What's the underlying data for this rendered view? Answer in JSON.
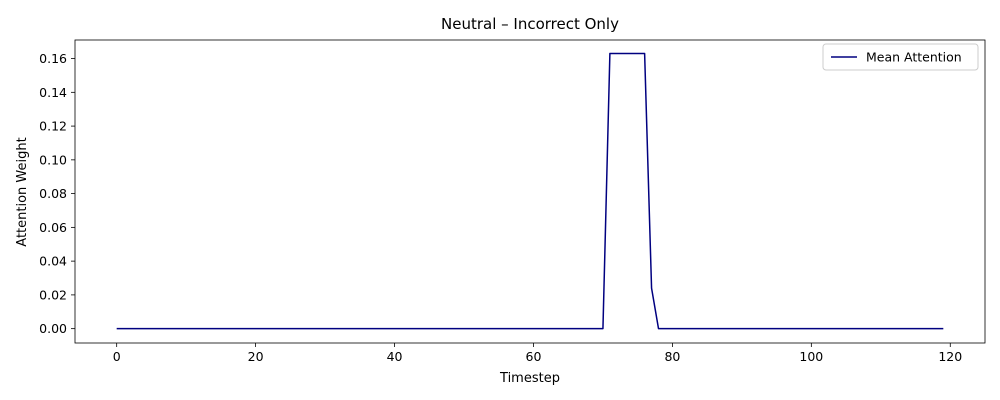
{
  "chart_data": {
    "type": "line",
    "title": "Neutral – Incorrect Only",
    "xlabel": "Timestep",
    "ylabel": "Attention Weight",
    "xlim": [
      -6,
      125
    ],
    "ylim": [
      -0.0085,
      0.171
    ],
    "xticks": [
      0,
      20,
      40,
      60,
      80,
      100,
      120
    ],
    "xtick_labels": [
      "0",
      "20",
      "40",
      "60",
      "80",
      "100",
      "120"
    ],
    "yticks": [
      0.0,
      0.02,
      0.04,
      0.06,
      0.08,
      0.1,
      0.12,
      0.14,
      0.16
    ],
    "ytick_labels": [
      "0.00",
      "0.02",
      "0.04",
      "0.06",
      "0.08",
      "0.10",
      "0.12",
      "0.14",
      "0.16"
    ],
    "grid": false,
    "legend_position": "top-right",
    "series": [
      {
        "name": "Mean Attention",
        "color": "#000080",
        "x": [
          0,
          70,
          71,
          72,
          73,
          74,
          75,
          76,
          77,
          78,
          119
        ],
        "y": [
          0,
          0,
          0.163,
          0.163,
          0.163,
          0.163,
          0.163,
          0.163,
          0.024,
          0,
          0
        ]
      }
    ]
  }
}
